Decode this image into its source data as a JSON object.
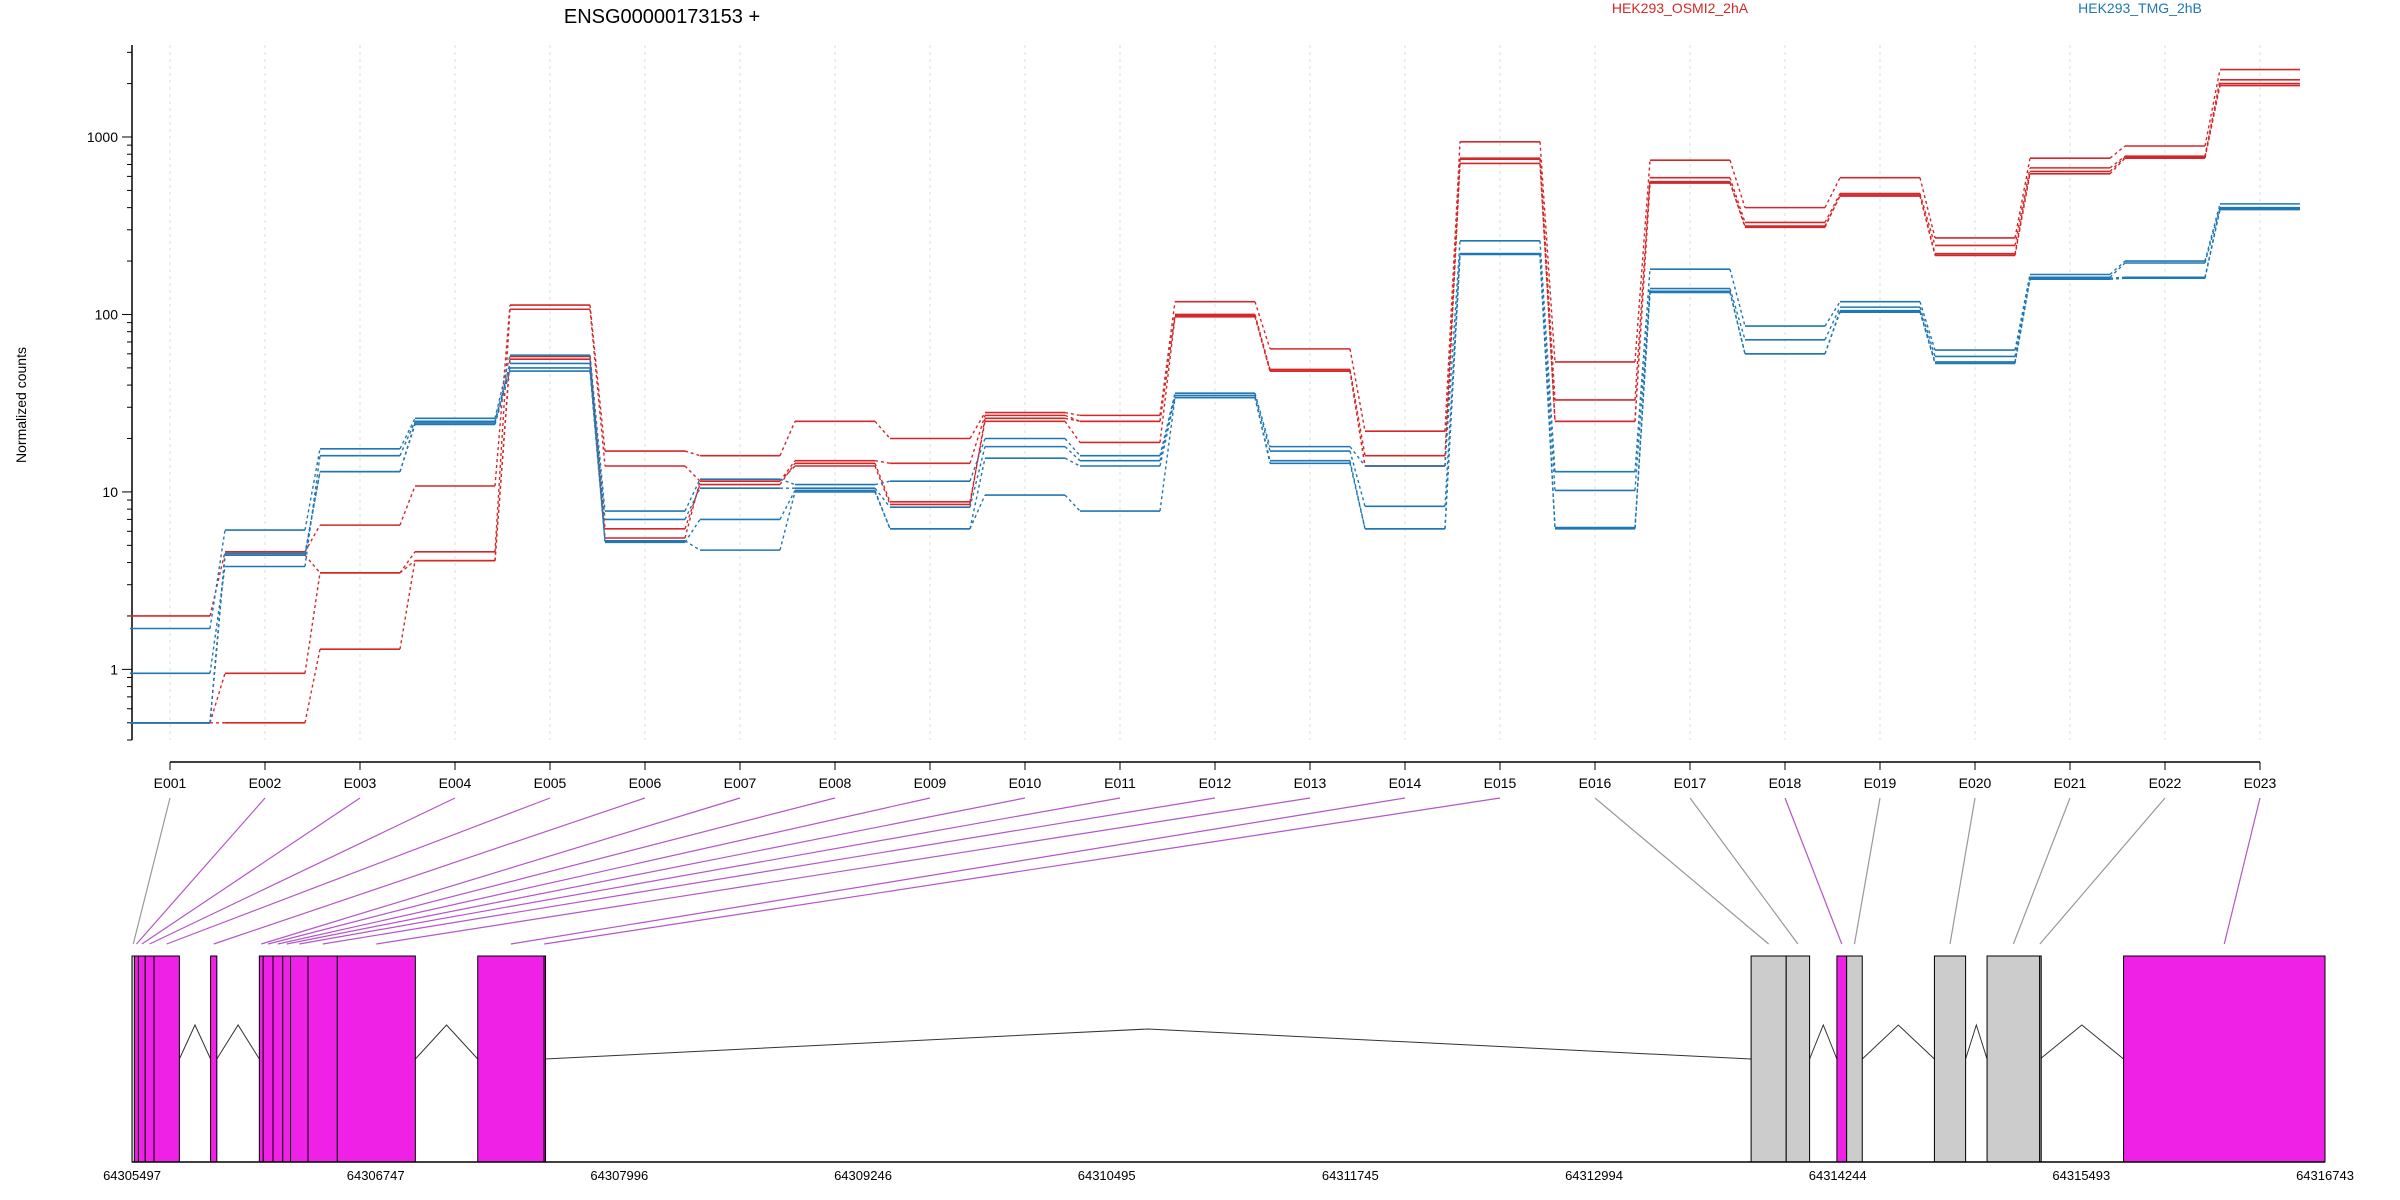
{
  "chart_data": {
    "type": "line",
    "title": "ENSG00000173153 +",
    "ylabel": "Normalized counts",
    "yscale": "log",
    "ylim": [
      0.4,
      3300
    ],
    "y_ticks": [
      1,
      10,
      100,
      1000
    ],
    "y_tick_labels": [
      "1",
      "10",
      "100",
      "1000"
    ],
    "legend_position": "top",
    "categories": [
      "E001",
      "E002",
      "E003",
      "E004",
      "E005",
      "E006",
      "E007",
      "E008",
      "E009",
      "E010",
      "E011",
      "E012",
      "E013",
      "E014",
      "E015",
      "E016",
      "E017",
      "E018",
      "E019",
      "E020",
      "E021",
      "E022",
      "E023"
    ],
    "groups": [
      {
        "name": "HEK293_OSMI2_2hA",
        "color": "#d62728"
      },
      {
        "name": "HEK293_TMG_2hB",
        "color": "#1f77b4"
      }
    ],
    "series": [
      {
        "group": 0,
        "values": [
          2.0,
          4.6,
          6.5,
          10.8,
          113,
          17,
          16,
          25,
          20,
          28,
          27,
          118,
          64,
          22,
          940,
          54,
          740,
          400,
          590,
          270,
          760,
          890,
          2400
        ]
      },
      {
        "group": 0,
        "values": [
          0.5,
          4.4,
          3.5,
          4.6,
          107,
          14,
          11.5,
          15,
          14.5,
          27,
          25,
          100,
          49,
          16,
          760,
          33,
          590,
          330,
          480,
          245,
          670,
          780,
          2100
        ]
      },
      {
        "group": 0,
        "values": [
          0.5,
          0.95,
          3.5,
          4.1,
          58,
          6.2,
          11,
          14.5,
          8.8,
          25,
          19,
          97,
          48,
          14,
          710,
          25,
          550,
          315,
          465,
          215,
          620,
          760,
          1950
        ]
      },
      {
        "group": 0,
        "values": [
          0.5,
          0.5,
          1.3,
          4.1,
          56,
          5.5,
          11.5,
          14,
          8.5,
          26,
          25,
          99,
          48,
          14,
          750,
          25,
          560,
          310,
          470,
          220,
          640,
          770,
          2000
        ]
      },
      {
        "group": 1,
        "values": [
          1.7,
          6.1,
          17.5,
          26,
          59,
          7.8,
          11.8,
          11,
          11.5,
          20,
          16,
          36,
          18,
          14,
          260,
          13,
          180,
          86,
          118,
          63,
          168,
          200,
          420
        ]
      },
      {
        "group": 1,
        "values": [
          0.95,
          3.8,
          16,
          25,
          53,
          7.0,
          10.5,
          10.5,
          8.2,
          18,
          15,
          35,
          17,
          8.3,
          220,
          10.2,
          140,
          72,
          110,
          58,
          162,
          195,
          400
        ]
      },
      {
        "group": 1,
        "values": [
          0.5,
          4.5,
          13,
          24,
          48,
          5.2,
          7.0,
          10.2,
          6.2,
          15.5,
          14,
          34,
          14.5,
          6.2,
          218,
          6.3,
          135,
          60,
          103,
          53,
          158,
          160,
          390
        ]
      },
      {
        "group": 1,
        "values": [
          0.5,
          4.4,
          13,
          24.5,
          50,
          5.3,
          4.7,
          10,
          6.2,
          9.6,
          7.8,
          34,
          15,
          6.2,
          220,
          6.2,
          133,
          60,
          105,
          54,
          160,
          162,
          395
        ]
      }
    ],
    "genomic_axis": {
      "range": [
        64305497,
        64316743
      ],
      "tick_labels": [
        "64305497",
        "64306747",
        "64307996",
        "64309246",
        "64310495",
        "64311745",
        "64312994",
        "64314244",
        "64315493",
        "64316743"
      ]
    },
    "exon_track": {
      "highlight_color": "#f021e6",
      "plain_color": "#cccccc",
      "exons": [
        {
          "id": "E001",
          "start": 64305497,
          "end": 64305510,
          "highlight": false
        },
        {
          "id": "E002",
          "start": 64305510,
          "end": 64305530,
          "highlight": true
        },
        {
          "id": "E003",
          "start": 64305530,
          "end": 64305565,
          "highlight": true
        },
        {
          "id": "E004",
          "start": 64305565,
          "end": 64305610,
          "highlight": true
        },
        {
          "id": "E005",
          "start": 64305610,
          "end": 64305740,
          "highlight": true
        },
        {
          "id": "E006",
          "start": 64305900,
          "end": 64305932,
          "highlight": true
        },
        {
          "id": "E007",
          "start": 64306150,
          "end": 64306170,
          "highlight": true
        },
        {
          "id": "E008",
          "start": 64306170,
          "end": 64306220,
          "highlight": true
        },
        {
          "id": "E009",
          "start": 64306220,
          "end": 64306270,
          "highlight": true
        },
        {
          "id": "E010",
          "start": 64306270,
          "end": 64306310,
          "highlight": true
        },
        {
          "id": "E011",
          "start": 64306310,
          "end": 64306400,
          "highlight": true
        },
        {
          "id": "E012",
          "start": 64306400,
          "end": 64306550,
          "highlight": true
        },
        {
          "id": "E013",
          "start": 64306550,
          "end": 64306950,
          "highlight": true
        },
        {
          "id": "E014",
          "start": 64307270,
          "end": 64307610,
          "highlight": true
        },
        {
          "id": "E015",
          "start": 64307610,
          "end": 64307612,
          "highlight": true
        },
        {
          "id": "E016",
          "start": 64313800,
          "end": 64313980,
          "highlight": false
        },
        {
          "id": "E017",
          "start": 64313980,
          "end": 64314100,
          "highlight": false
        },
        {
          "id": "E018",
          "start": 64314240,
          "end": 64314290,
          "highlight": true
        },
        {
          "id": "E019",
          "start": 64314290,
          "end": 64314370,
          "highlight": false
        },
        {
          "id": "E020",
          "start": 64314740,
          "end": 64314900,
          "highlight": false
        },
        {
          "id": "E021",
          "start": 64315010,
          "end": 64315280,
          "highlight": false
        },
        {
          "id": "E022",
          "start": 64315280,
          "end": 64315282,
          "highlight": false
        },
        {
          "id": "E023",
          "start": 64315710,
          "end": 64316743,
          "highlight": true
        }
      ],
      "introns": [
        [
          64305740,
          64305900
        ],
        [
          64305932,
          64306150
        ],
        [
          64306950,
          64307270
        ],
        [
          64307612,
          64313800
        ],
        [
          64314100,
          64314240
        ],
        [
          64314370,
          64314740
        ],
        [
          64314900,
          64315010
        ],
        [
          64315282,
          64315710
        ]
      ]
    }
  }
}
